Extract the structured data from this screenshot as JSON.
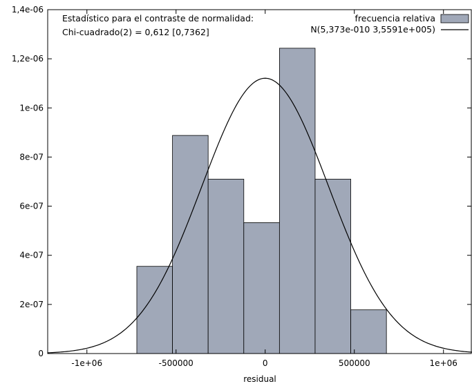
{
  "chart_data": {
    "type": "bar",
    "xlabel": "residual",
    "ylabel": "",
    "xlim": [
      -1220000,
      1160000
    ],
    "ylim": [
      0,
      1.4e-06
    ],
    "bins": [
      {
        "x_start": -720000,
        "x_end": -520000,
        "value": 3.55e-07
      },
      {
        "x_start": -520000,
        "x_end": -320000,
        "value": 8.88e-07
      },
      {
        "x_start": -320000,
        "x_end": -120000,
        "value": 7.1e-07
      },
      {
        "x_start": -120000,
        "x_end": 80000,
        "value": 5.33e-07
      },
      {
        "x_start": 80000,
        "x_end": 280000,
        "value": 1.243e-06
      },
      {
        "x_start": 280000,
        "x_end": 480000,
        "value": 7.1e-07
      },
      {
        "x_start": 480000,
        "x_end": 680000,
        "value": 1.78e-07
      }
    ],
    "normal_curve": {
      "mean": 5.373e-10,
      "sd": 355910
    },
    "x_ticks": [
      {
        "value": -1000000,
        "label": "-1e+06"
      },
      {
        "value": -500000,
        "label": "-500000"
      },
      {
        "value": 0,
        "label": "0"
      },
      {
        "value": 500000,
        "label": "500000"
      },
      {
        "value": 1000000,
        "label": "1e+06"
      }
    ],
    "y_ticks": [
      {
        "value": 0,
        "label": "0"
      },
      {
        "value": 2e-07,
        "label": "2e-07"
      },
      {
        "value": 4e-07,
        "label": "4e-07"
      },
      {
        "value": 6e-07,
        "label": "6e-07"
      },
      {
        "value": 8e-07,
        "label": "8e-07"
      },
      {
        "value": 1e-06,
        "label": "1e-06"
      },
      {
        "value": 1.2e-06,
        "label": "1,2e-06"
      },
      {
        "value": 1.4e-06,
        "label": "1,4e-06"
      }
    ],
    "legend": {
      "position": "top-right",
      "entries": [
        {
          "label": "frecuencia relativa",
          "kind": "box"
        },
        {
          "label": "N(5,373e-010 3,5591e+005)",
          "kind": "line"
        }
      ]
    },
    "annotations": [
      "Estadístico para el contraste de normalidad:",
      "Chi-cuadrado(2) = 0,612 [0,7362]"
    ],
    "colors": {
      "bar_fill": "#a0a8b8",
      "bar_stroke": "#000000",
      "curve": "#000000"
    }
  }
}
